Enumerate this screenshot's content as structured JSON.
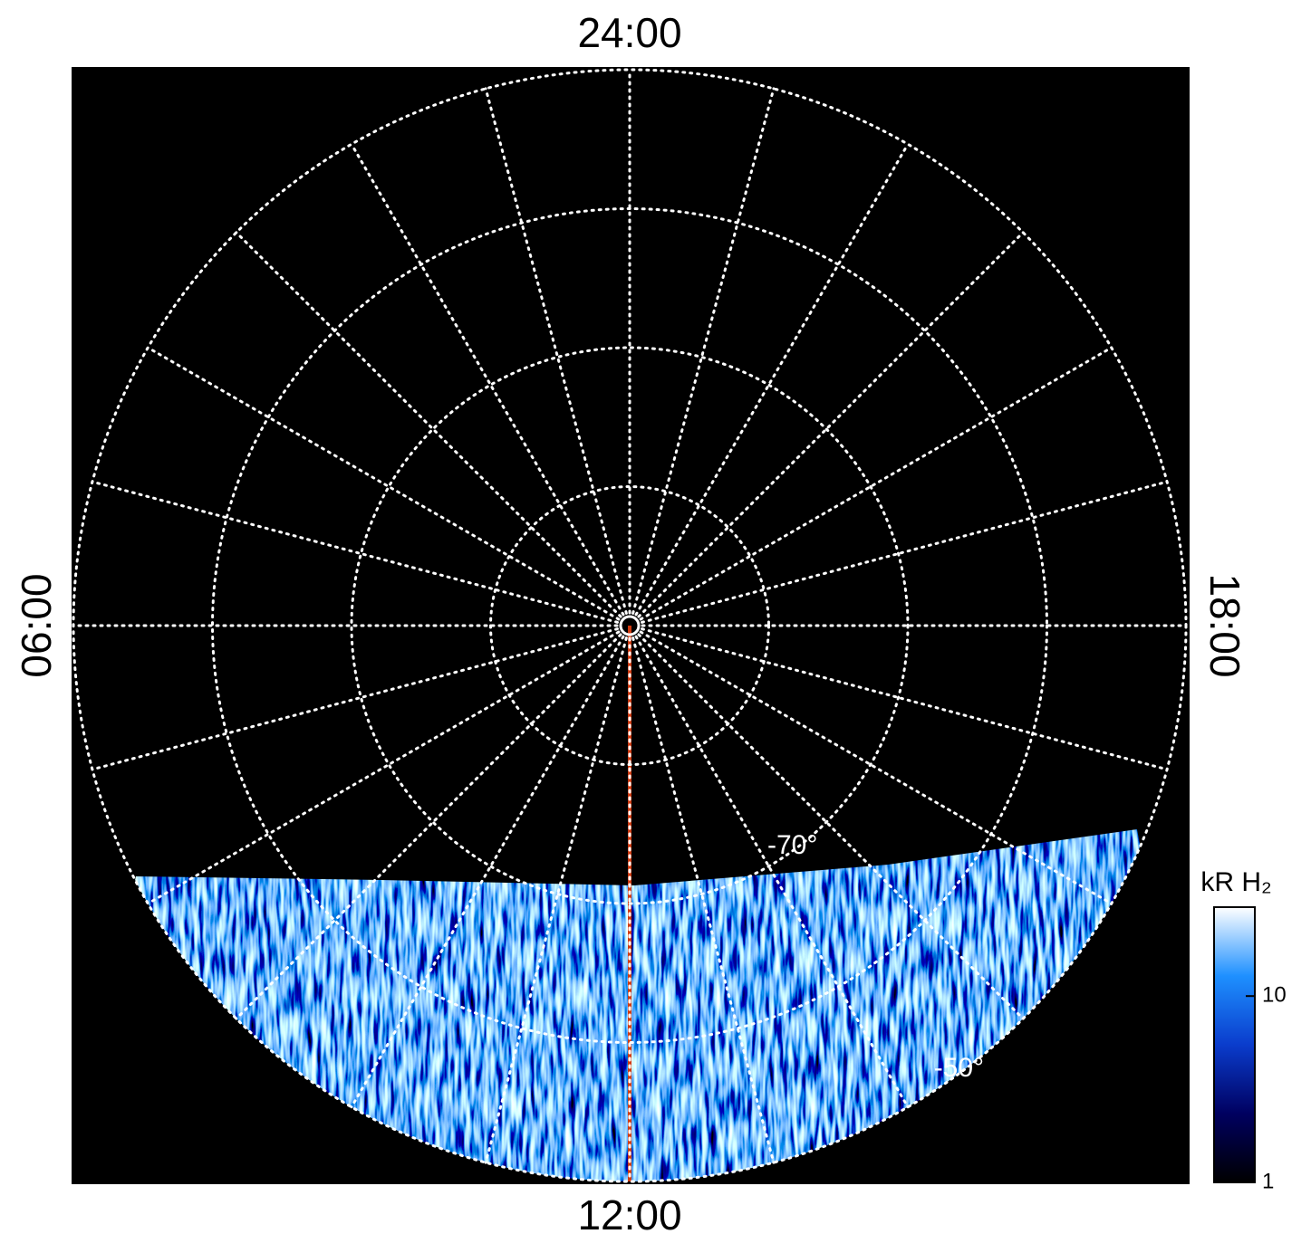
{
  "chart_data": {
    "type": "polar-image",
    "rlim": [
      -90,
      -50
    ],
    "rticks": [
      -80,
      -70,
      -60,
      -50
    ],
    "rtick_labels": [
      {
        "value": -70,
        "label": "-70°"
      },
      {
        "value": -50,
        "label": "-50°"
      }
    ],
    "hour_ticks": [
      {
        "value": 24,
        "label": "24:00"
      },
      {
        "value": 6,
        "label": "06:00"
      },
      {
        "value": 12,
        "label": "12:00"
      },
      {
        "value": 18,
        "label": "18:00"
      }
    ],
    "grid": true,
    "reference_line_color": "#d03a10",
    "colorbar": {
      "title": "kR H₂",
      "log": true,
      "lim": [
        1,
        30
      ],
      "ticks": [
        1,
        10
      ],
      "colormap": [
        "#000000",
        "#000060",
        "#0a3ccc",
        "#1e90ff",
        "#ffffff"
      ]
    }
  }
}
